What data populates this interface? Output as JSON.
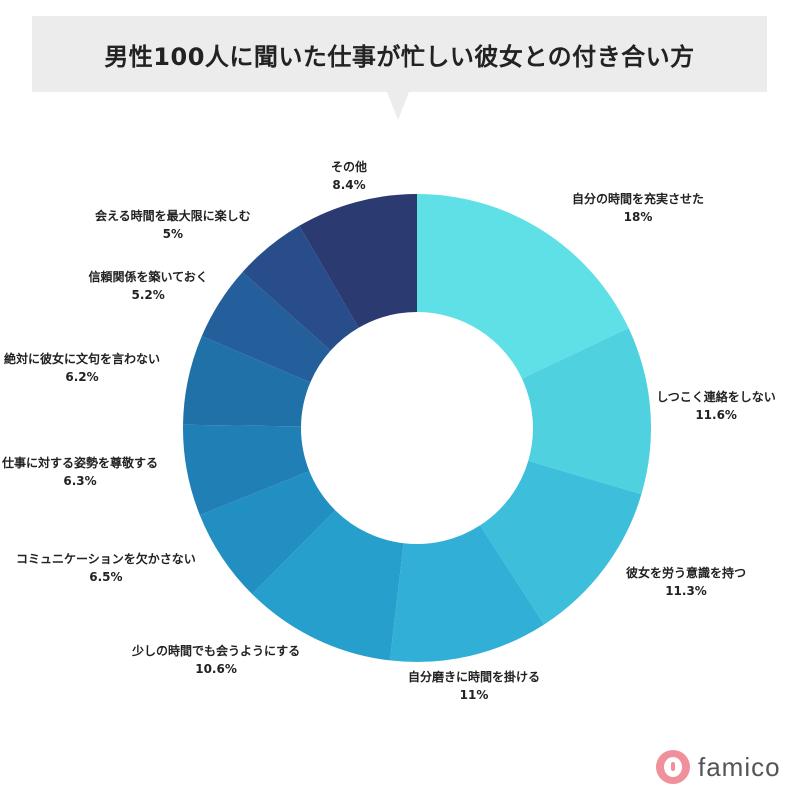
{
  "title": "男性100人に聞いた仕事が忙しい彼女との付き合い方",
  "logo": {
    "text": "famico",
    "color": "#f0909a"
  },
  "chart_data": {
    "type": "donut",
    "categories": [
      "自分の時間を充実させた",
      "しつこく連絡をしない",
      "彼女を労う意識を持つ",
      "自分磨きに時間を掛ける",
      "少しの時間でも会うようにする",
      "コミュニケーションを欠かさない",
      "仕事に対する姿勢を尊敬する",
      "絶対に彼女に文句を言わない",
      "信頼関係を築いておく",
      "会える時間を最大限に楽しむ",
      "その他"
    ],
    "values": [
      18,
      11.6,
      11.3,
      11,
      10.6,
      6.5,
      6.3,
      6.2,
      5.2,
      5,
      8.4
    ],
    "value_labels": [
      "18%",
      "11.6%",
      "11.3%",
      "11%",
      "10.6%",
      "6.5%",
      "6.3%",
      "6.2%",
      "5.2%",
      "5%",
      "8.4%"
    ],
    "colors": [
      "#5ee0e6",
      "#4fd1e0",
      "#3dbfdc",
      "#31afd6",
      "#279fcc",
      "#228fc2",
      "#2080b6",
      "#2071a8",
      "#245f9c",
      "#284d8a",
      "#2c3a72"
    ]
  }
}
